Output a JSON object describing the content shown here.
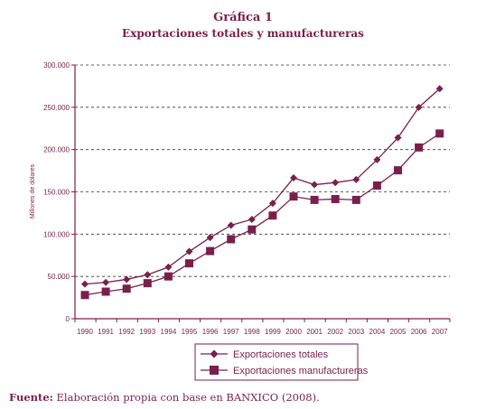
{
  "title": "Gráfica 1",
  "subtitle": "Exportaciones totales y manufactureras",
  "source": {
    "label": "Fuente:",
    "text": "Elaboración propia con base en BANXICO (2008)."
  },
  "colors": {
    "primary": "#7a1f4c"
  },
  "chart_data": {
    "type": "line",
    "ylabel": "Millones de dólares",
    "ylim": [
      0,
      300000
    ],
    "yticks": [
      0,
      50000,
      100000,
      150000,
      200000,
      250000,
      300000
    ],
    "ytick_labels": [
      "0",
      "50.000",
      "100.000",
      "150.000",
      "200.000",
      "250.000",
      "300.000"
    ],
    "grid": "horizontal dashed",
    "legend_placement": "bottom",
    "categories": [
      "1990",
      "1991",
      "1992",
      "1993",
      "1994",
      "1995",
      "1996",
      "1997",
      "1998",
      "1999",
      "2000",
      "2001",
      "2002",
      "2003",
      "2004",
      "2005",
      "2006",
      "2007"
    ],
    "series": [
      {
        "name": "Exportaciones totales",
        "marker": "diamond",
        "values": [
          41000,
          43000,
          46500,
          52000,
          61000,
          79500,
          96000,
          110500,
          117500,
          136500,
          166500,
          158500,
          161000,
          164500,
          188000,
          214000,
          250000,
          272000
        ]
      },
      {
        "name": "Exportaciones manufactureras",
        "marker": "square",
        "values": [
          28000,
          32000,
          35500,
          42000,
          50000,
          65500,
          80000,
          94000,
          105500,
          122000,
          144500,
          140500,
          141500,
          140500,
          157500,
          175500,
          202500,
          219000
        ]
      }
    ]
  }
}
